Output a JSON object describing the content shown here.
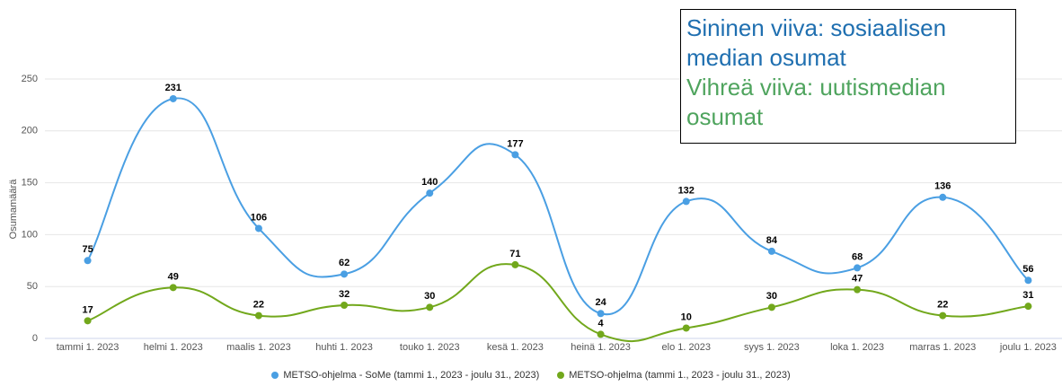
{
  "chart_data": {
    "type": "line",
    "y_label": "Osumamäärä",
    "categories": [
      "tammi 1. 2023",
      "helmi 1. 2023",
      "maalis 1. 2023",
      "huhti 1. 2023",
      "touko 1. 2023",
      "kesä 1. 2023",
      "heinä 1. 2023",
      "elo 1. 2023",
      "syys 1. 2023",
      "loka 1. 2023",
      "marras 1. 2023",
      "joulu 1. 2023"
    ],
    "series": [
      {
        "name": "METSO-ohjelma - SoMe (tammi 1., 2023 - joulu 31., 2023)",
        "color": "#4a9fe3",
        "values": [
          75,
          231,
          106,
          62,
          140,
          177,
          24,
          132,
          84,
          68,
          136,
          56
        ]
      },
      {
        "name": "METSO-ohjelma (tammi 1., 2023 - joulu 31., 2023)",
        "color": "#72a81c",
        "values": [
          17,
          49,
          22,
          32,
          30,
          71,
          4,
          10,
          30,
          47,
          22,
          31
        ]
      }
    ],
    "ylim": [
      0,
      250
    ],
    "yticks": [
      0,
      50,
      100,
      150,
      200,
      250
    ],
    "grid": true,
    "annotation": {
      "lines": [
        {
          "text": "Sininen viiva: sosiaalisen median osumat",
          "color": "#1f6fb0"
        },
        {
          "text": "Vihreä viiva: uutismedian osumat",
          "color": "#4fa45e"
        }
      ]
    }
  }
}
